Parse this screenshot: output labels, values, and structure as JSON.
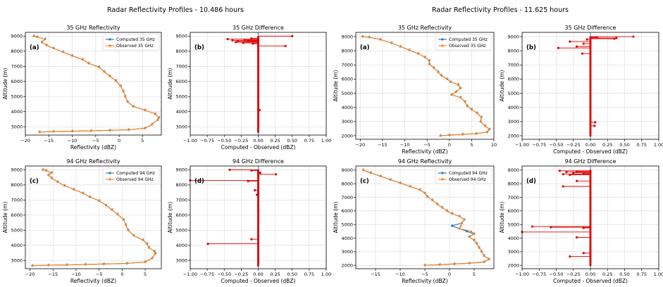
{
  "figure": {
    "suptitles": [
      "Radar Reflectivity Profiles - 10.486 hours",
      "Radar Reflectivity Profiles - 11.625 hours"
    ]
  },
  "colors": {
    "computed": "#1f77b4",
    "observed": "#ff7f0e",
    "difference": "#e00000",
    "zero_line": "#1f77b4"
  },
  "chart_data": [
    {
      "type": "line",
      "group": 0,
      "tag": "(a)",
      "title": "35 GHz Reflectivity",
      "xlabel": "Reflectivity (dBZ)",
      "ylabel": "Altitude (m)",
      "xlim": [
        -20,
        9
      ],
      "ylim": [
        2450,
        9250
      ],
      "xticks": [
        -20,
        -15,
        -10,
        -5,
        0,
        5
      ],
      "yticks": [
        3000,
        4000,
        5000,
        6000,
        7000,
        8000,
        9000
      ],
      "legend": [
        "Computed 35 GHz",
        "Observed 35 GHz"
      ],
      "legend_loc": "upper right",
      "profile": [
        [
          -17,
          2650
        ],
        [
          -14,
          2680
        ],
        [
          -10,
          2700
        ],
        [
          -6,
          2730
        ],
        [
          -2,
          2760
        ],
        [
          2,
          2800
        ],
        [
          5.5,
          2900
        ],
        [
          7,
          3150
        ],
        [
          8.2,
          3450
        ],
        [
          8.5,
          3600
        ],
        [
          7.7,
          3850
        ],
        [
          5.5,
          4100
        ],
        [
          3,
          4350
        ],
        [
          1.8,
          4650
        ],
        [
          1.3,
          5000
        ],
        [
          0.9,
          5350
        ],
        [
          0.3,
          5700
        ],
        [
          -0.7,
          6050
        ],
        [
          -2,
          6350
        ],
        [
          -3.2,
          6650
        ],
        [
          -4.3,
          6950
        ],
        [
          -6.5,
          7200
        ],
        [
          -7.8,
          7450
        ],
        [
          -10,
          7700
        ],
        [
          -12,
          7950
        ],
        [
          -14,
          8200
        ],
        [
          -15.5,
          8400
        ],
        [
          -16.5,
          8600
        ],
        [
          -15.8,
          8800
        ],
        [
          -17.5,
          8950
        ],
        [
          -18.2,
          9000
        ]
      ],
      "obs_offsets": []
    },
    {
      "type": "line",
      "group": 0,
      "tag": "(b)",
      "title": "35 GHz Difference",
      "xlabel": "Computed - Observed (dBZ)",
      "ylabel": "Altitude (m)",
      "xlim": [
        -1,
        1
      ],
      "ylim": [
        2450,
        9250
      ],
      "xticks": [
        -1.0,
        -0.75,
        -0.5,
        -0.25,
        0.0,
        0.25,
        0.5,
        0.75,
        1.0
      ],
      "yticks": [
        3000,
        4000,
        5000,
        6000,
        7000,
        8000,
        9000
      ],
      "ymin": 2650,
      "ymax": 9000,
      "diffs": [
        [
          9000,
          0.5
        ],
        [
          8850,
          -0.1
        ],
        [
          8800,
          -0.45
        ],
        [
          8750,
          -0.2
        ],
        [
          8720,
          -0.38
        ],
        [
          8680,
          -0.15
        ],
        [
          8650,
          -0.3
        ],
        [
          8600,
          -0.33
        ],
        [
          8550,
          -0.22
        ],
        [
          8500,
          -0.08
        ],
        [
          8350,
          0.4
        ],
        [
          4100,
          0.02
        ]
      ]
    },
    {
      "type": "line",
      "group": 0,
      "tag": "(c)",
      "title": "94 GHz Reflectivity",
      "xlabel": "Reflectivity (dBZ)",
      "ylabel": "Altitude (m)",
      "xlim": [
        -21,
        8.5
      ],
      "ylim": [
        2450,
        9250
      ],
      "xticks": [
        -20,
        -15,
        -10,
        -5,
        0,
        5
      ],
      "yticks": [
        3000,
        4000,
        5000,
        6000,
        7000,
        8000,
        9000
      ],
      "legend": [
        "Computed 94 GHz",
        "Observed 94 GHz"
      ],
      "legend_loc": "upper right",
      "profile": [
        [
          -19.5,
          2650
        ],
        [
          -16,
          2680
        ],
        [
          -12,
          2700
        ],
        [
          -8,
          2730
        ],
        [
          -4,
          2760
        ],
        [
          1,
          2800
        ],
        [
          5,
          2900
        ],
        [
          6.5,
          3150
        ],
        [
          7.2,
          3450
        ],
        [
          7,
          3600
        ],
        [
          5.8,
          3850
        ],
        [
          5.4,
          4100
        ],
        [
          4.5,
          4350
        ],
        [
          2.5,
          4650
        ],
        [
          1.3,
          5000
        ],
        [
          0.8,
          5350
        ],
        [
          0.3,
          5700
        ],
        [
          -1,
          6050
        ],
        [
          -2.2,
          6350
        ],
        [
          -3.5,
          6650
        ],
        [
          -5,
          6950
        ],
        [
          -7,
          7200
        ],
        [
          -8.5,
          7450
        ],
        [
          -10.5,
          7700
        ],
        [
          -12.5,
          7950
        ],
        [
          -14,
          8200
        ],
        [
          -15.3,
          8450
        ],
        [
          -16,
          8650
        ],
        [
          -15.3,
          8800
        ],
        [
          -16.5,
          8950
        ],
        [
          -17.2,
          9000
        ]
      ],
      "obs_offsets": []
    },
    {
      "type": "line",
      "group": 0,
      "tag": "(d)",
      "title": "94 GHz Difference",
      "xlabel": "Computed - Observed (dBZ)",
      "ylabel": "Altitude (m)",
      "xlim": [
        -1,
        1
      ],
      "ylim": [
        2450,
        9250
      ],
      "xticks": [
        -1.0,
        -0.75,
        -0.5,
        -0.25,
        0.0,
        0.25,
        0.5,
        0.75,
        1.0
      ],
      "yticks": [
        3000,
        4000,
        5000,
        6000,
        7000,
        8000,
        9000
      ],
      "ymin": 2650,
      "ymax": 9000,
      "diffs": [
        [
          9000,
          -0.42
        ],
        [
          8950,
          -0.1
        ],
        [
          8800,
          0.03
        ],
        [
          8700,
          0.26
        ],
        [
          8300,
          -1.0
        ],
        [
          8250,
          -0.15
        ],
        [
          7650,
          -0.05
        ],
        [
          7350,
          -0.02
        ],
        [
          4400,
          -0.1
        ],
        [
          4100,
          -0.74
        ]
      ]
    },
    {
      "type": "line",
      "group": 1,
      "tag": "(a)",
      "title": "35 GHz Reflectivity",
      "xlabel": "Reflectivity (dBZ)",
      "ylabel": "Altitude (m)",
      "xlim": [
        -21,
        10
      ],
      "ylim": [
        1750,
        9300
      ],
      "xticks": [
        -20,
        -15,
        -10,
        -5,
        0,
        5,
        10
      ],
      "yticks": [
        2000,
        3000,
        4000,
        5000,
        6000,
        7000,
        8000,
        9000
      ],
      "legend": [
        "Computed 35 GHz",
        "Observed 35 GHz"
      ],
      "legend_loc": "upper right",
      "profile": [
        [
          -2,
          2000
        ],
        [
          0,
          2050
        ],
        [
          3,
          2100
        ],
        [
          6,
          2150
        ],
        [
          8.5,
          2250
        ],
        [
          9,
          2450
        ],
        [
          8,
          2700
        ],
        [
          7,
          3000
        ],
        [
          7.2,
          3300
        ],
        [
          6.2,
          3600
        ],
        [
          5,
          3850
        ],
        [
          4,
          4100
        ],
        [
          3.5,
          4400
        ],
        [
          2.5,
          4700
        ],
        [
          0.5,
          4900
        ],
        [
          1.5,
          5100
        ],
        [
          2.5,
          5350
        ],
        [
          2,
          5600
        ],
        [
          0.3,
          5800
        ],
        [
          -0.5,
          6000
        ],
        [
          -1.8,
          6250
        ],
        [
          -2.5,
          6500
        ],
        [
          -3.5,
          6800
        ],
        [
          -4.5,
          7050
        ],
        [
          -4.5,
          7300
        ],
        [
          -5.5,
          7550
        ],
        [
          -7,
          7800
        ],
        [
          -9,
          8050
        ],
        [
          -11,
          8300
        ],
        [
          -13,
          8550
        ],
        [
          -15.5,
          8800
        ],
        [
          -18,
          8950
        ],
        [
          -19.5,
          9000
        ]
      ],
      "obs_offsets": []
    },
    {
      "type": "line",
      "group": 1,
      "tag": "(b)",
      "title": "35 GHz Difference",
      "xlabel": "Computed - Observed (dBZ)",
      "ylabel": "Altitude (m)",
      "xlim": [
        -1,
        1
      ],
      "ylim": [
        1750,
        9300
      ],
      "xticks": [
        -1.0,
        -0.75,
        -0.5,
        -0.25,
        0.0,
        0.25,
        0.5,
        0.75,
        1.0
      ],
      "yticks": [
        2000,
        3000,
        4000,
        5000,
        6000,
        7000,
        8000,
        9000
      ],
      "ymin": 2000,
      "ymax": 9000,
      "diffs": [
        [
          9000,
          0.63
        ],
        [
          8950,
          0.1
        ],
        [
          8900,
          0.38
        ],
        [
          8850,
          0.35
        ],
        [
          8800,
          -0.05
        ],
        [
          8650,
          -0.3
        ],
        [
          8500,
          -0.1
        ],
        [
          8300,
          -0.2
        ],
        [
          8200,
          -0.47
        ],
        [
          7800,
          -0.12
        ],
        [
          2950,
          0.07
        ],
        [
          2700,
          0.06
        ]
      ]
    },
    {
      "type": "line",
      "group": 1,
      "tag": "(c)",
      "title": "94 GHz Reflectivity",
      "xlabel": "Reflectivity (dBZ)",
      "ylabel": "Altitude (m)",
      "xlim": [
        -19,
        9
      ],
      "ylim": [
        1750,
        9300
      ],
      "xticks": [
        -15,
        -10,
        -5,
        0,
        5
      ],
      "yticks": [
        2000,
        3000,
        4000,
        5000,
        6000,
        7000,
        8000,
        9000
      ],
      "legend": [
        "Computed 94 GHz",
        "Observed 94 GHz"
      ],
      "legend_loc": "upper right",
      "profile": [
        [
          -5,
          2000
        ],
        [
          -2,
          2050
        ],
        [
          1,
          2100
        ],
        [
          4,
          2150
        ],
        [
          7,
          2250
        ],
        [
          8,
          2450
        ],
        [
          7,
          2700
        ],
        [
          6.5,
          3000
        ],
        [
          6,
          3300
        ],
        [
          5.5,
          3600
        ],
        [
          5,
          3850
        ],
        [
          4,
          4100
        ],
        [
          5,
          4300
        ],
        [
          3.5,
          4500
        ],
        [
          2,
          4700
        ],
        [
          0.5,
          4900
        ],
        [
          2.5,
          5100
        ],
        [
          3,
          5350
        ],
        [
          2,
          5600
        ],
        [
          0.5,
          5800
        ],
        [
          -0.5,
          6000
        ],
        [
          -1.5,
          6250
        ],
        [
          -2.5,
          6500
        ],
        [
          -3.5,
          6800
        ],
        [
          -4.5,
          7050
        ],
        [
          -5,
          7300
        ],
        [
          -6,
          7550
        ],
        [
          -8,
          7800
        ],
        [
          -10,
          8050
        ],
        [
          -12,
          8300
        ],
        [
          -14,
          8550
        ],
        [
          -16,
          8800
        ],
        [
          -17.5,
          9000
        ]
      ],
      "obs_offsets": [
        [
          4800,
          0.8
        ],
        [
          4850,
          1.3
        ],
        [
          4900,
          1.8
        ],
        [
          5000,
          1.2
        ],
        [
          4600,
          1.0
        ],
        [
          4500,
          0.9
        ]
      ]
    },
    {
      "type": "line",
      "group": 1,
      "tag": "(d)",
      "title": "94 GHz Difference",
      "xlabel": "Computed - Observed (dBZ)",
      "ylabel": "Altitude (m)",
      "xlim": [
        -1,
        1
      ],
      "ylim": [
        1750,
        9300
      ],
      "xticks": [
        -1.0,
        -0.75,
        -0.5,
        -0.25,
        0.0,
        0.25,
        0.5,
        0.75,
        1.0
      ],
      "yticks": [
        2000,
        3000,
        4000,
        5000,
        6000,
        7000,
        8000,
        9000
      ],
      "ymin": 2000,
      "ymax": 9000,
      "diffs": [
        [
          8950,
          -0.45
        ],
        [
          8900,
          -0.2
        ],
        [
          8850,
          -0.35
        ],
        [
          8800,
          -0.25
        ],
        [
          8750,
          -0.1
        ],
        [
          8700,
          -0.4
        ],
        [
          8650,
          -0.3
        ],
        [
          8200,
          -0.2
        ],
        [
          7800,
          -0.4
        ],
        [
          4850,
          -0.85
        ],
        [
          4800,
          -0.58
        ],
        [
          4750,
          -0.1
        ],
        [
          4450,
          -1.0
        ],
        [
          4050,
          -0.2
        ],
        [
          2900,
          -0.1
        ],
        [
          2650,
          -0.3
        ]
      ]
    }
  ]
}
